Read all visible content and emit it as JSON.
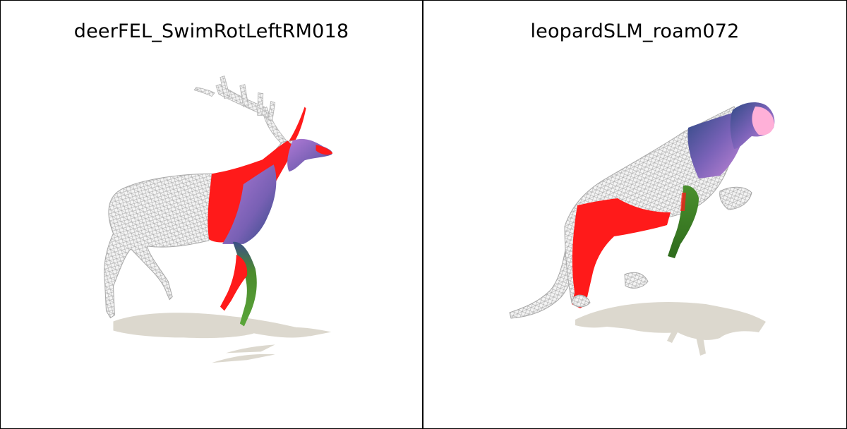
{
  "panels": [
    {
      "title": "deerFEL_SwimRotLeftRM018",
      "colors": {
        "mesh": "#d8d8d8",
        "red": "#ff1a1a",
        "purple": "#8a6fc0",
        "blue": "#3d4f8a",
        "green": "#3c8a28",
        "pink": "#ffb0d8",
        "shadow": "#dcd8ce"
      }
    },
    {
      "title": "leopardSLM_roam072",
      "colors": {
        "mesh": "#d8d8d8",
        "red": "#ff1a1a",
        "purple": "#8a6fc0",
        "blue": "#3d4f8a",
        "green": "#3c8a28",
        "pink": "#ffb0d8",
        "shadow": "#dcd8ce"
      }
    }
  ]
}
